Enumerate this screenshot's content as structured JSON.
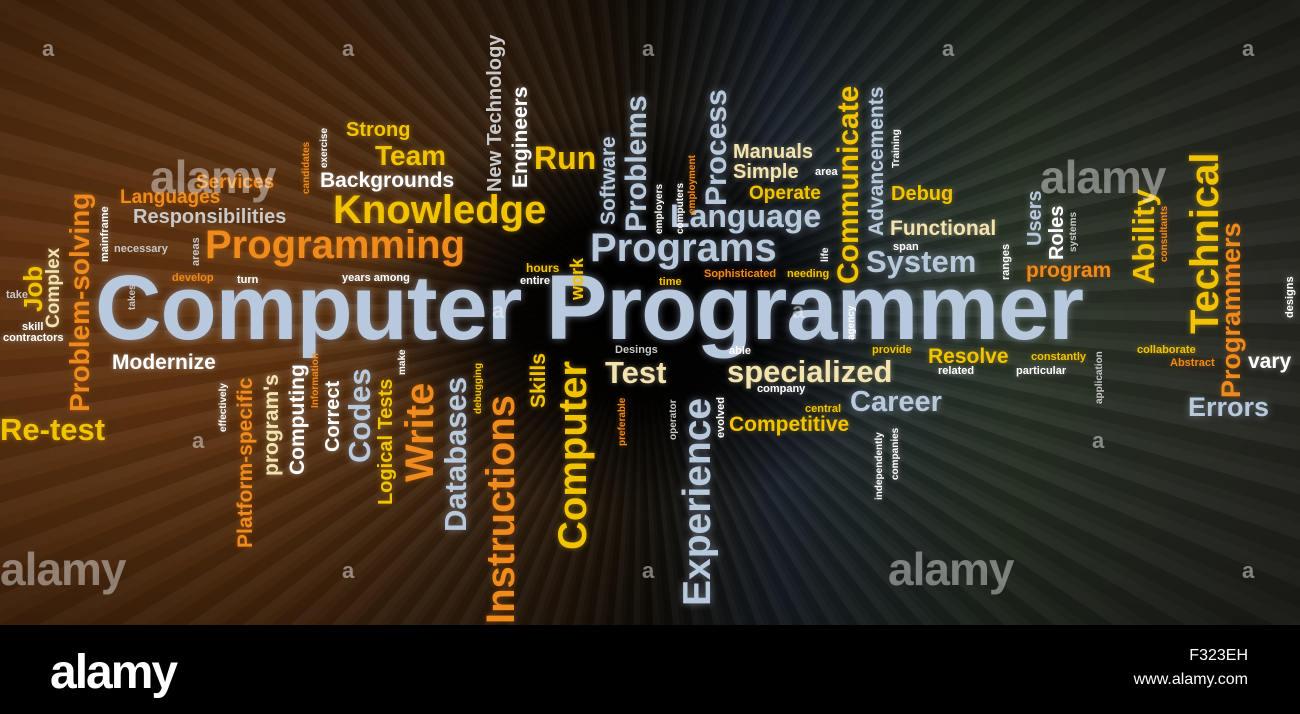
{
  "words": {
    "computer_programmer": "Computer Programmer",
    "programming": "Programming",
    "knowledge": "Knowledge",
    "team": "Team",
    "strong": "Strong",
    "run": "Run",
    "backgrounds": "Backgrounds",
    "services": "Services",
    "languages": "Languages",
    "responsibilities": "Responsibilities",
    "necessary": "necessary",
    "develop": "develop",
    "turn": "turn",
    "years_among": "years among",
    "hours": "hours",
    "entire": "entire",
    "take": "take",
    "skill": "skill",
    "contractors": "contractors",
    "modernize": "Modernize",
    "re_test": "Re-test",
    "job": "Job",
    "complex": "Complex",
    "problem_solving": "Problem-solving",
    "mainframe": "mainframe",
    "areas": "areas",
    "exercise": "exercise",
    "candidates": "candidates",
    "new_technology": "New Technology",
    "engineers": "Engineers",
    "software": "Software",
    "problems": "Problems",
    "work": "work",
    "programs": "Programs",
    "language": "Language",
    "process": "Process",
    "manuals": "Manuals",
    "simple": "Simple",
    "area": "area",
    "operate": "Operate",
    "communicate": "Communicate",
    "advancements": "Advancements",
    "training": "Training",
    "debug": "Debug",
    "functional": "Functional",
    "span": "span",
    "system": "System",
    "technical": "Technical",
    "programmers": "Programmers",
    "ability": "Ability",
    "users": "Users",
    "roles": "Roles",
    "systems": "systems",
    "consultants": "consultants",
    "ranges": "ranges",
    "program": "program",
    "takes": "takes",
    "designs": "designs",
    "sophisticated": "Sophisticated",
    "needing": "needing",
    "life": "life",
    "time": "time",
    "employers": "employers",
    "computers": "computers",
    "employment": "employment",
    "agency": "agency",
    "test": "Test",
    "specialized": "specialized",
    "company": "company",
    "provide": "provide",
    "resolve": "Resolve",
    "constantly": "constantly",
    "related": "related",
    "particular": "particular",
    "collaborate": "collaborate",
    "abstract": "Abstract",
    "vary": "vary",
    "errors": "Errors",
    "career": "Career",
    "central": "central",
    "competitive": "Competitive",
    "independently": "independently",
    "companies": "companies",
    "application": "application",
    "able": "able",
    "desings": "Desings",
    "experience": "Experience",
    "evolved": "evolved",
    "operator": "operator",
    "preferable": "preferable",
    "computer": "Computer",
    "skills": "Skills",
    "instructions": "Instructions",
    "databases": "Databases",
    "debugging": "debugging",
    "write": "Write",
    "make": "make",
    "logical_tests": "Logical Tests",
    "codes": "Codes",
    "correct": "Correct",
    "information": "Information",
    "computing": "Computing",
    "programs_possessive": "program's",
    "platform_specific": "Platform-specific",
    "effectively": "effectively"
  },
  "watermark": {
    "brand": "alamy",
    "mark": "a"
  },
  "footer": {
    "logo": "alamy",
    "image_id": "F323EH",
    "url": "www.alamy.com"
  }
}
